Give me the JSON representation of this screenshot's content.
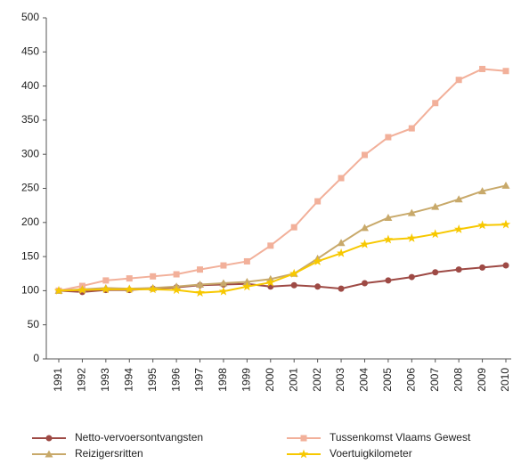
{
  "chart_data": {
    "type": "line",
    "categories": [
      "1991",
      "1992",
      "1993",
      "1994",
      "1995",
      "1996",
      "1997",
      "1998",
      "1999",
      "2000",
      "2001",
      "2002",
      "2003",
      "2004",
      "2005",
      "2006",
      "2007",
      "2008",
      "2009",
      "2010"
    ],
    "series": [
      {
        "name": "Netto-vervoersontvangsten",
        "color": "#9e4a45",
        "marker": "circle",
        "values": [
          100,
          98,
          101,
          101,
          103,
          105,
          108,
          109,
          110,
          106,
          108,
          106,
          103,
          111,
          115,
          120,
          127,
          131,
          134,
          137
        ]
      },
      {
        "name": "Tussenkomst Vlaams Gewest",
        "color": "#f2b09a",
        "marker": "square",
        "values": [
          100,
          107,
          115,
          118,
          121,
          124,
          131,
          137,
          143,
          166,
          193,
          231,
          265,
          299,
          325,
          338,
          375,
          409,
          425,
          422
        ]
      },
      {
        "name": "Reizigersritten",
        "color": "#c8a96a",
        "marker": "triangle",
        "values": [
          100,
          102,
          104,
          103,
          104,
          106,
          109,
          111,
          113,
          117,
          125,
          147,
          170,
          192,
          207,
          214,
          223,
          234,
          246,
          254
        ]
      },
      {
        "name": "Voertuigkilometer",
        "color": "#f7c800",
        "marker": "star",
        "values": [
          100,
          101,
          102,
          102,
          102,
          101,
          97,
          99,
          106,
          112,
          125,
          143,
          155,
          168,
          175,
          177,
          183,
          190,
          196,
          197
        ]
      }
    ],
    "ylim": [
      0,
      500
    ],
    "yticks": [
      0,
      50,
      100,
      150,
      200,
      250,
      300,
      350,
      400,
      450,
      500
    ],
    "grid": false,
    "legend": "bottom"
  }
}
